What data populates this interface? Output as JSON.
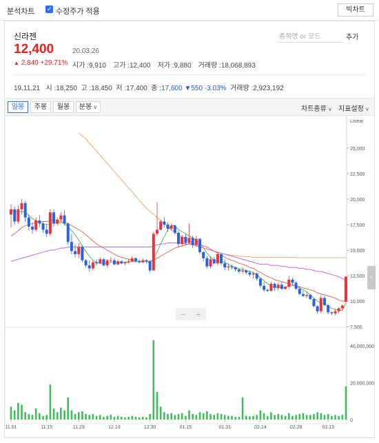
{
  "topbar": {
    "title": "분석차트",
    "adjusted_label": "수정주가 적용",
    "adjusted_checked": true,
    "big_chart_button": "빅차트"
  },
  "stock": {
    "name": "신라젠",
    "price": "12,400",
    "date": "20.03.26",
    "change": "2,840",
    "change_pct": "+29.71%",
    "open_label": "시가 :",
    "open": "9,910",
    "high_label": "고가 :",
    "high": "12,400",
    "low_label": "저가 :",
    "low": "9,880",
    "volume_label": "거래량 :",
    "volume": "18,068,893"
  },
  "search": {
    "placeholder": "종목명 or 코드",
    "add_label": "추가"
  },
  "previous": {
    "date": "19.11.21",
    "open_label": "시 :",
    "open": "18,250",
    "high_label": "고 :",
    "high": "18,450",
    "low_label": "저 :",
    "low": "17,400",
    "close_label": "종 :",
    "close": "17,600",
    "change": "▼550",
    "change_pct": "-3.03%",
    "volume_label": "거래량 :",
    "volume": "2,923,192"
  },
  "toolbar": {
    "tabs": [
      "일봉",
      "주봉",
      "월봉",
      "분봉"
    ],
    "active_tab": 0,
    "chart_type": "차트종류",
    "indicator": "지표설정"
  },
  "colors": {
    "up": "#e8323c",
    "down": "#2a62e0",
    "ma5": "#4fb23a",
    "ma20": "#e85c4a",
    "ma60": "#b15ce0",
    "ma120": "#f0a060",
    "volume": "#3cbe5a"
  },
  "chart_data": {
    "type": "candlestick",
    "scale_label": "Linear",
    "price_ticks": [
      7500,
      10000,
      12500,
      15000,
      17500,
      20000,
      22500,
      25000
    ],
    "price_tick_labels": [
      "7,500",
      "10,000",
      "12,500",
      "15,000",
      "17,500",
      "20,000",
      "22,500",
      "25,000"
    ],
    "volume_ticks": [
      0,
      20000000,
      40000000
    ],
    "volume_tick_labels": [
      "0",
      "20,000,000",
      "40,000,000"
    ],
    "x_tick_labels": [
      "11.01",
      "11.15",
      "11.29",
      "12.13",
      "12.30",
      "01.15",
      "01.31",
      "02.14",
      "02.28",
      "03.13"
    ],
    "x_tick_index": [
      0,
      10,
      19,
      29,
      39,
      49,
      60,
      70,
      80,
      89
    ],
    "series": [
      {
        "name": "price",
        "ohlc": [
          [
            18500,
            19500,
            17200,
            19000
          ],
          [
            19000,
            19300,
            17500,
            17800
          ],
          [
            17800,
            19400,
            17600,
            19000
          ],
          [
            19000,
            20000,
            18500,
            19600
          ],
          [
            19600,
            19800,
            17800,
            18200
          ],
          [
            18200,
            18500,
            16900,
            17300
          ],
          [
            17300,
            17700,
            16600,
            17000
          ],
          [
            17000,
            18200,
            16800,
            17900
          ],
          [
            17900,
            18400,
            17300,
            17600
          ],
          [
            17600,
            17800,
            16700,
            17000
          ],
          [
            17000,
            17500,
            16300,
            16600
          ],
          [
            16600,
            19000,
            16400,
            18700
          ],
          [
            18700,
            19000,
            17300,
            17600
          ],
          [
            17600,
            18200,
            17400,
            18000
          ],
          [
            18000,
            18700,
            17800,
            18400
          ],
          [
            18400,
            18900,
            17400,
            17600
          ],
          [
            17600,
            17700,
            15500,
            15800
          ],
          [
            15800,
            16600,
            14600,
            14900
          ],
          [
            14900,
            15600,
            14300,
            14600
          ],
          [
            14600,
            15700,
            14200,
            15300
          ],
          [
            15300,
            15500,
            13800,
            14000
          ],
          [
            14000,
            14100,
            13300,
            13500
          ],
          [
            13500,
            14000,
            12900,
            13200
          ],
          [
            13200,
            14000,
            13000,
            13800
          ],
          [
            13800,
            14100,
            13500,
            13700
          ],
          [
            13700,
            14300,
            13600,
            14100
          ],
          [
            14100,
            14200,
            13400,
            13500
          ],
          [
            13500,
            14100,
            13300,
            14000
          ],
          [
            14000,
            14300,
            13800,
            14000
          ],
          [
            14000,
            14200,
            13500,
            13600
          ],
          [
            13600,
            14100,
            13500,
            13900
          ],
          [
            13900,
            14000,
            13600,
            13700
          ],
          [
            13700,
            13900,
            13500,
            13800
          ],
          [
            13800,
            14100,
            13700,
            13900
          ],
          [
            13900,
            14400,
            13800,
            14200
          ],
          [
            14200,
            14300,
            13800,
            13900
          ],
          [
            13900,
            14100,
            13700,
            13800
          ],
          [
            13800,
            14200,
            13700,
            14000
          ],
          [
            14000,
            14100,
            13700,
            13900
          ],
          [
            13900,
            14000,
            12800,
            13000
          ],
          [
            13000,
            16800,
            13000,
            16600
          ],
          [
            16600,
            19700,
            16400,
            17000
          ],
          [
            17000,
            18000,
            16900,
            17800
          ],
          [
            17800,
            18200,
            17200,
            17500
          ],
          [
            17500,
            17700,
            16800,
            17100
          ],
          [
            17100,
            17600,
            16900,
            17400
          ],
          [
            17400,
            17500,
            16500,
            16700
          ],
          [
            16700,
            16900,
            15300,
            15600
          ],
          [
            15600,
            16500,
            15400,
            16300
          ],
          [
            16300,
            16600,
            15500,
            15700
          ],
          [
            15700,
            17600,
            15600,
            16200
          ],
          [
            16200,
            16400,
            15200,
            15500
          ],
          [
            15500,
            16400,
            15400,
            16100
          ],
          [
            16100,
            16200,
            14600,
            14800
          ],
          [
            14800,
            14900,
            13900,
            14200
          ],
          [
            14200,
            14400,
            13200,
            13400
          ],
          [
            13400,
            14400,
            13200,
            14100
          ],
          [
            14100,
            14300,
            13600,
            13700
          ],
          [
            13700,
            14800,
            13500,
            14600
          ],
          [
            14600,
            14700,
            13500,
            13700
          ],
          [
            13700,
            14100,
            13000,
            13300
          ],
          [
            13300,
            13700,
            13000,
            13400
          ],
          [
            13400,
            13600,
            13100,
            13300
          ],
          [
            13300,
            13400,
            12900,
            13100
          ],
          [
            13100,
            13200,
            12700,
            12900
          ],
          [
            12900,
            13300,
            12700,
            13000
          ],
          [
            13000,
            13100,
            12600,
            12800
          ],
          [
            12800,
            13000,
            12400,
            12600
          ],
          [
            12600,
            12900,
            12200,
            12700
          ],
          [
            12700,
            12800,
            12000,
            12200
          ],
          [
            12200,
            12300,
            11300,
            11500
          ],
          [
            11500,
            11900,
            10900,
            11100
          ],
          [
            11100,
            11200,
            10900,
            11000
          ],
          [
            11000,
            11900,
            10900,
            11700
          ],
          [
            11700,
            11800,
            11000,
            11300
          ],
          [
            11300,
            11800,
            11000,
            11600
          ],
          [
            11600,
            11900,
            11100,
            11200
          ],
          [
            11200,
            11500,
            11100,
            11400
          ],
          [
            11400,
            12500,
            11200,
            12100
          ],
          [
            12100,
            12300,
            11600,
            11800
          ],
          [
            11800,
            11900,
            11100,
            11200
          ],
          [
            11200,
            11400,
            10600,
            10700
          ],
          [
            10700,
            11000,
            10400,
            10500
          ],
          [
            10500,
            10900,
            10300,
            10600
          ],
          [
            10600,
            10700,
            10100,
            10200
          ],
          [
            10200,
            10300,
            9400,
            9500
          ],
          [
            9500,
            9600,
            8800,
            9000
          ],
          [
            9000,
            10600,
            8800,
            10300
          ],
          [
            10300,
            10500,
            9500,
            9600
          ],
          [
            9600,
            9700,
            8700,
            8900
          ],
          [
            8900,
            9000,
            8600,
            8800
          ],
          [
            8800,
            9200,
            8600,
            9000
          ],
          [
            9000,
            9400,
            8800,
            9300
          ],
          [
            9300,
            9700,
            9100,
            9560
          ],
          [
            9910,
            12400,
            9880,
            12400
          ]
        ]
      },
      {
        "name": "MA5",
        "values": [
          18900,
          18800,
          18700,
          18800,
          18700,
          18400,
          18100,
          17900,
          17700,
          17600,
          17500,
          17600,
          17700,
          17600,
          17700,
          17600,
          17300,
          16900,
          16500,
          16000,
          15400,
          14900,
          14400,
          14000,
          13800,
          13700,
          13700,
          13700,
          13800,
          13800,
          13800,
          13800,
          13800,
          13800,
          13900,
          13900,
          13900,
          13900,
          13900,
          13700,
          14200,
          14800,
          15600,
          16300,
          17000,
          17400,
          17400,
          17000,
          16800,
          16600,
          16400,
          16200,
          15900,
          15700,
          15200,
          14700,
          14300,
          14000,
          13900,
          13900,
          13800,
          13600,
          13400,
          13300,
          13200,
          13100,
          13000,
          12900,
          12800,
          12600,
          12300,
          12000,
          11700,
          11500,
          11300,
          11300,
          11300,
          11300,
          11500,
          11500,
          11500,
          11300,
          11100,
          10900,
          10600,
          10300,
          10000,
          9800,
          9700,
          9500,
          9300,
          9200,
          9100,
          9100,
          9800
        ]
      },
      {
        "name": "MA20",
        "values": [
          16400,
          16600,
          16900,
          17200,
          17400,
          17500,
          17600,
          17700,
          17800,
          17800,
          17800,
          17900,
          17900,
          17900,
          17800,
          17700,
          17600,
          17400,
          17200,
          17000,
          16800,
          16500,
          16200,
          15900,
          15600,
          15400,
          15200,
          15000,
          14800,
          14600,
          14400,
          14300,
          14200,
          14100,
          14000,
          13900,
          13900,
          13900,
          13900,
          13900,
          14000,
          14200,
          14400,
          14600,
          14800,
          15000,
          15200,
          15300,
          15400,
          15500,
          15600,
          15600,
          15600,
          15500,
          15400,
          15300,
          15100,
          14900,
          14700,
          14500,
          14300,
          14100,
          14000,
          13900,
          13700,
          13600,
          13500,
          13300,
          13200,
          13000,
          12800,
          12600,
          12400,
          12300,
          12100,
          12000,
          11900,
          11800,
          11700,
          11600,
          11500,
          11400,
          11300,
          11200,
          11100,
          11000,
          10800,
          10700,
          10600,
          10500,
          10400,
          10300,
          10100,
          10000,
          10000
        ]
      },
      {
        "name": "MA60",
        "values": [
          13900,
          14000,
          14100,
          14200,
          14300,
          14400,
          14500,
          14600,
          14700,
          14800,
          14900,
          15000,
          15000,
          15100,
          15200,
          15200,
          15300,
          15300,
          15300,
          15300,
          15300,
          15300,
          15300,
          15300,
          15300,
          15300,
          15300,
          15300,
          15300,
          15300,
          15300,
          15300,
          15300,
          15300,
          15300,
          15300,
          15300,
          15300,
          15300,
          15300,
          15400,
          15500,
          15600,
          15600,
          15700,
          15700,
          15700,
          15700,
          15700,
          15600,
          15600,
          15500,
          15400,
          15300,
          15200,
          15100,
          15000,
          14900,
          14800,
          14700,
          14600,
          14500,
          14400,
          14300,
          14200,
          14100,
          14000,
          13900,
          13800,
          13700,
          13600,
          13600,
          13600,
          13500,
          13500,
          13500,
          13400,
          13400,
          13300,
          13300,
          13300,
          13200,
          13200,
          13100,
          13100,
          13000,
          12900,
          12900,
          12800,
          12700,
          12600,
          12500,
          12400,
          12200,
          12100
        ]
      },
      {
        "name": "MA120",
        "start_index": 19,
        "values": [
          26500,
          26200,
          25900,
          25500,
          25100,
          24700,
          24300,
          23900,
          23500,
          23100,
          22700,
          22300,
          21900,
          21500,
          21100,
          20700,
          20300,
          19900,
          19500,
          19100,
          18800,
          18500,
          18200,
          17900,
          17600,
          17300,
          17000,
          16700,
          16500,
          16300,
          16100,
          15900,
          15700,
          15500,
          15300,
          15200,
          15100,
          15000,
          14900,
          14800,
          14700,
          14600,
          14550,
          14500,
          14450,
          14400,
          14400,
          14350,
          14350,
          14300,
          14300,
          14300,
          14300,
          14300,
          14300,
          14300,
          14300,
          14300,
          14300,
          14300,
          14300,
          14250,
          14250,
          14250,
          14250,
          14250,
          14250,
          14250,
          14250,
          14250,
          14250,
          14250,
          14250,
          14250,
          14250,
          14250
        ]
      },
      {
        "name": "volume",
        "values": [
          7000000,
          5000000,
          9000000,
          8000000,
          4000000,
          3000000,
          2500000,
          6000000,
          3500000,
          2000000,
          2500000,
          19000000,
          6000000,
          4000000,
          6500000,
          5000000,
          12000000,
          5000000,
          3000000,
          4000000,
          4500000,
          3000000,
          2500000,
          3000000,
          2000000,
          2500000,
          1500000,
          2000000,
          2500000,
          1500000,
          2000000,
          1500000,
          1200000,
          1500000,
          2000000,
          1500000,
          1200000,
          1500000,
          1200000,
          3000000,
          43000000,
          15000000,
          7000000,
          4000000,
          3000000,
          3500000,
          2500000,
          3000000,
          3500000,
          2000000,
          5000000,
          3000000,
          2500000,
          4000000,
          3500000,
          4500000,
          3000000,
          2500000,
          3500000,
          3000000,
          2500000,
          2000000,
          2000000,
          1500000,
          1500000,
          12000000,
          2000000,
          1800000,
          2000000,
          2500000,
          5000000,
          3500000,
          2000000,
          4000000,
          2500000,
          3000000,
          2500000,
          2000000,
          3500000,
          2000000,
          2500000,
          3000000,
          3500000,
          2500000,
          2500000,
          3000000,
          4000000,
          3500000,
          2500000,
          3000000,
          2000000,
          2500000,
          2000000,
          2500000,
          18000000
        ]
      }
    ]
  }
}
